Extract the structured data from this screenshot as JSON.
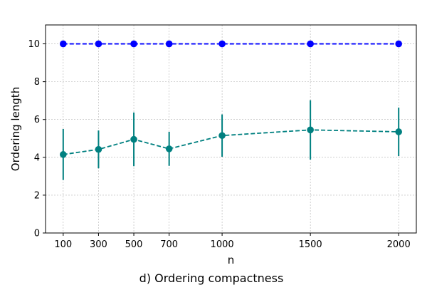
{
  "chart_data": {
    "type": "line",
    "title": "",
    "caption": "d) Ordering compactness",
    "xlabel": "n",
    "ylabel": "Ordering length",
    "x": [
      100,
      300,
      500,
      700,
      1000,
      1500,
      2000
    ],
    "xticks": [
      "100",
      "300",
      "500",
      "700",
      "1000",
      "1500",
      "2000"
    ],
    "xlim": [
      0,
      2100
    ],
    "ylim": [
      0,
      11
    ],
    "yticks": [
      "0",
      "2",
      "4",
      "6",
      "8",
      "10"
    ],
    "grid": true,
    "series": [
      {
        "color": "#0000ff",
        "linestyle": "dashed",
        "marker": "circle",
        "values": [
          10,
          10,
          10,
          10,
          10,
          10,
          10
        ],
        "errors": [
          0,
          0,
          0,
          0,
          0,
          0,
          0
        ]
      },
      {
        "color": "#008080",
        "linestyle": "dashed",
        "marker": "circle",
        "values": [
          4.15,
          4.42,
          4.95,
          4.45,
          5.15,
          5.45,
          5.35
        ],
        "errors": [
          1.35,
          1.0,
          1.42,
          0.9,
          1.12,
          1.57,
          1.28
        ]
      }
    ]
  }
}
